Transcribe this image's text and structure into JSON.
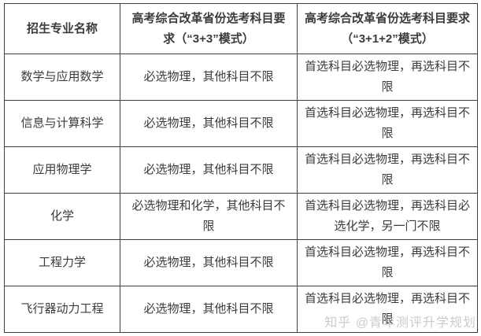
{
  "colors": {
    "border": "#3f3f3f",
    "text": "#3b3b3b",
    "background": "#ffffff",
    "watermark": "#a0a0a0"
  },
  "table": {
    "headers": {
      "major": "招生专业名称",
      "mode33": "高考综合改革省份选考科目要求（“3+3”模式）",
      "mode312": "高考综合改革省份选考科目要求（“3+1+2”模式）"
    },
    "rows": [
      {
        "major": "数学与应用数学",
        "mode33": "必选物理，其他科目不限",
        "mode312": "首选科目必选物理，再选科目不限"
      },
      {
        "major": "信息与计算科学",
        "mode33": "必选物理，其他科目不限",
        "mode312": "首选科目必选物理，再选科目不限"
      },
      {
        "major": "应用物理学",
        "mode33": "必选物理，其他科目不限",
        "mode312": "首选科目必选物理，再选科目不限"
      },
      {
        "major": "化学",
        "mode33": "必选物理和化学，其他科目不限",
        "mode312": "首选科目必选物理，再选科目必选化学，另一门不限"
      },
      {
        "major": "工程力学",
        "mode33": "必选物理，其他科目不限",
        "mode312": "首选科目必选物理，再选科目不限"
      },
      {
        "major": "飞行器动力工程",
        "mode33": "必选物理，其他科目不限",
        "mode312": "首选科目必选物理，再选科目不限"
      }
    ]
  },
  "watermark": {
    "text": "知乎 @青年测评升学规划"
  }
}
